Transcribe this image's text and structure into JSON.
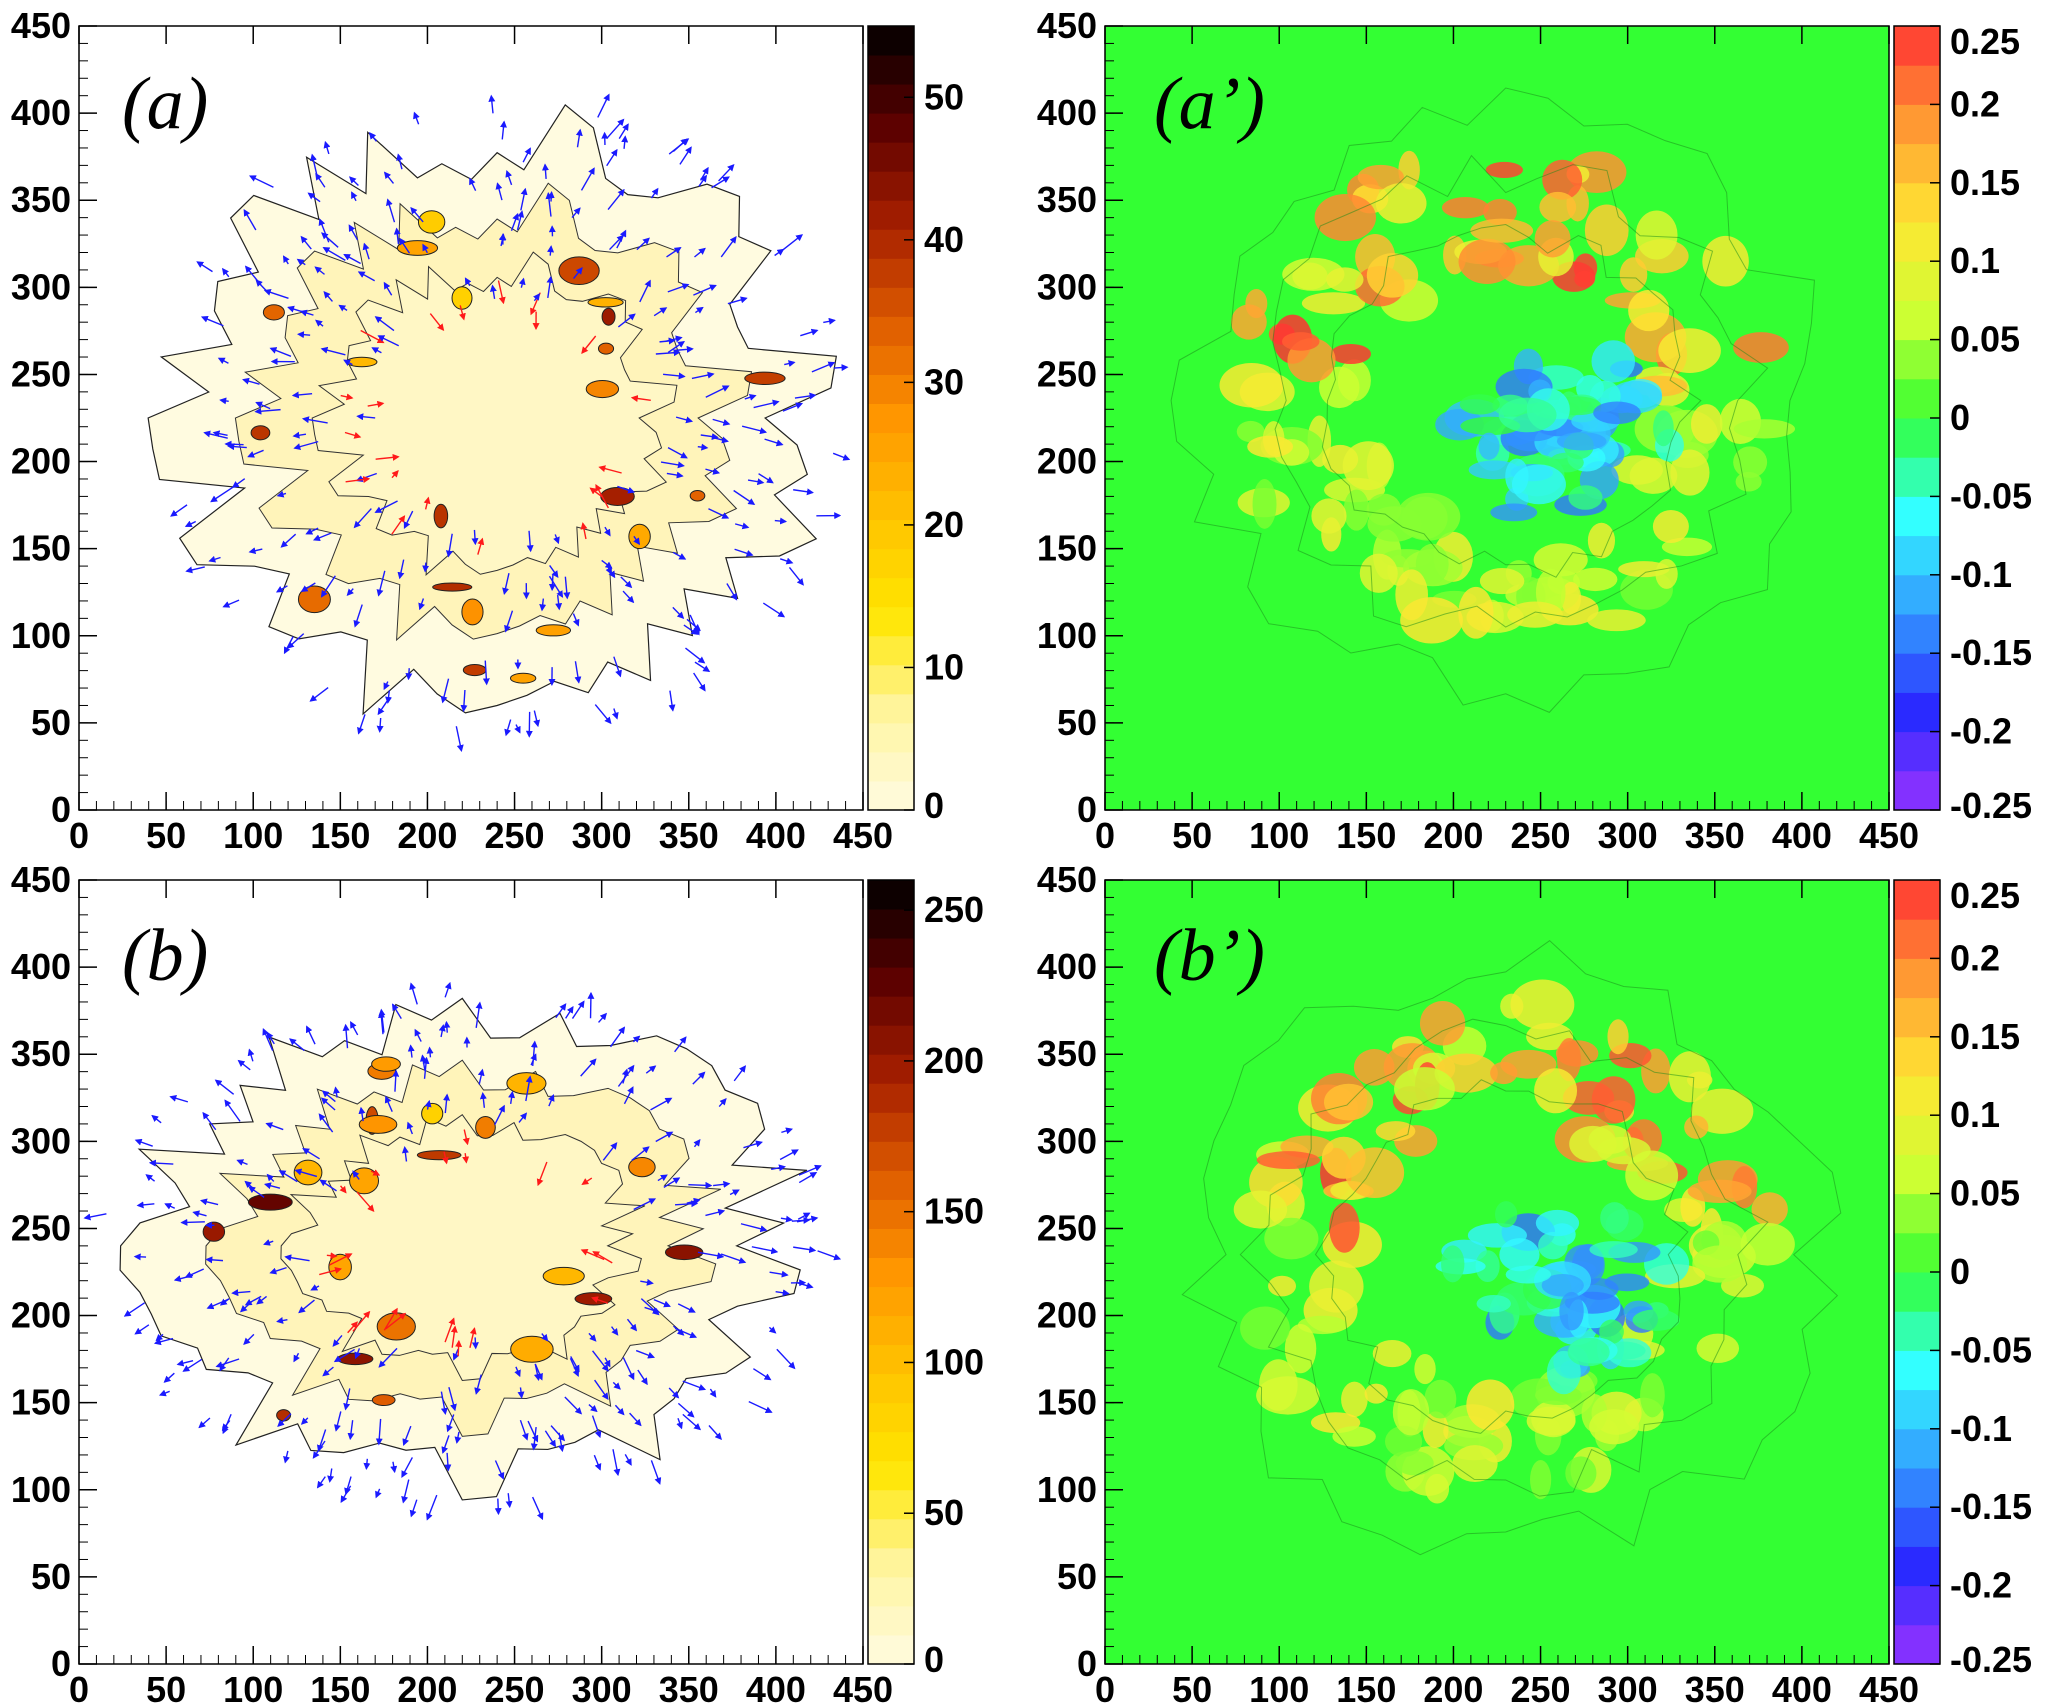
{
  "chart_data": [
    {
      "id": "a",
      "type": "heatmap",
      "title": "(a)",
      "xlabel": "",
      "ylabel": "",
      "xlim": [
        0,
        450
      ],
      "ylim": [
        0,
        450
      ],
      "x_ticks": [
        "0",
        "50",
        "100",
        "150",
        "200",
        "250",
        "300",
        "350",
        "400",
        "450"
      ],
      "y_ticks": [
        "0",
        "50",
        "100",
        "150",
        "200",
        "250",
        "300",
        "350",
        "400",
        "450"
      ],
      "colorbar": {
        "scheme": "sequential-yellow-orange-black",
        "range": [
          0,
          55
        ],
        "labels": [
          "0",
          "10",
          "20",
          "30",
          "40",
          "50"
        ],
        "label_values": [
          0,
          10,
          20,
          30,
          40,
          50
        ]
      },
      "background": "#ffffff",
      "region": {
        "cx": 240,
        "cy": 225,
        "rx": 175,
        "ry": 160
      },
      "arrow_colors": {
        "outward": "#1a1aff",
        "inward": "#ff1a1a"
      }
    },
    {
      "id": "a_prime",
      "type": "heatmap",
      "title": "(a’)",
      "xlabel": "",
      "ylabel": "",
      "xlim": [
        0,
        450
      ],
      "ylim": [
        0,
        450
      ],
      "x_ticks": [
        "0",
        "50",
        "100",
        "150",
        "200",
        "250",
        "300",
        "350",
        "400",
        "450"
      ],
      "y_ticks": [
        "0",
        "50",
        "100",
        "150",
        "200",
        "250",
        "300",
        "350",
        "400",
        "450"
      ],
      "colorbar": {
        "scheme": "diverging-rainbow",
        "range": [
          -0.25,
          0.25
        ],
        "labels": [
          "0.25",
          "0.2",
          "0.15",
          "0.1",
          "0.05",
          "0",
          "-0.05",
          "-0.1",
          "-0.15",
          "-0.2",
          "-0.25"
        ],
        "label_values": [
          0.25,
          0.2,
          0.15,
          0.1,
          0.05,
          0,
          -0.05,
          -0.1,
          -0.15,
          -0.2,
          -0.25
        ]
      },
      "background": "#33ff33"
    },
    {
      "id": "b",
      "type": "heatmap",
      "title": "(b)",
      "xlabel": "",
      "ylabel": "",
      "xlim": [
        0,
        450
      ],
      "ylim": [
        0,
        450
      ],
      "x_ticks": [
        "0",
        "50",
        "100",
        "150",
        "200",
        "250",
        "300",
        "350",
        "400",
        "450"
      ],
      "y_ticks": [
        "0",
        "50",
        "100",
        "150",
        "200",
        "250",
        "300",
        "350",
        "400",
        "450"
      ],
      "colorbar": {
        "scheme": "sequential-yellow-orange-black",
        "range": [
          0,
          260
        ],
        "labels": [
          "0",
          "50",
          "100",
          "150",
          "200",
          "250"
        ],
        "label_values": [
          0,
          50,
          100,
          150,
          200,
          250
        ]
      },
      "background": "#ffffff",
      "region": {
        "cx": 220,
        "cy": 240,
        "rx": 180,
        "ry": 130
      },
      "arrow_colors": {
        "outward": "#1a1aff",
        "inward": "#ff1a1a"
      }
    },
    {
      "id": "b_prime",
      "type": "heatmap",
      "title": "(b’)",
      "xlabel": "",
      "ylabel": "",
      "xlim": [
        0,
        450
      ],
      "ylim": [
        0,
        450
      ],
      "x_ticks": [
        "0",
        "50",
        "100",
        "150",
        "200",
        "250",
        "300",
        "350",
        "400",
        "450"
      ],
      "y_ticks": [
        "0",
        "50",
        "100",
        "150",
        "200",
        "250",
        "300",
        "350",
        "400",
        "450"
      ],
      "colorbar": {
        "scheme": "diverging-rainbow",
        "range": [
          -0.25,
          0.25
        ],
        "labels": [
          "0.25",
          "0.2",
          "0.15",
          "0.1",
          "0.05",
          "0",
          "-0.05",
          "-0.1",
          "-0.15",
          "-0.2",
          "-0.25"
        ],
        "label_values": [
          0.25,
          0.2,
          0.15,
          0.1,
          0.05,
          0,
          -0.05,
          -0.1,
          -0.15,
          -0.2,
          -0.25
        ]
      },
      "background": "#33ff33"
    }
  ]
}
